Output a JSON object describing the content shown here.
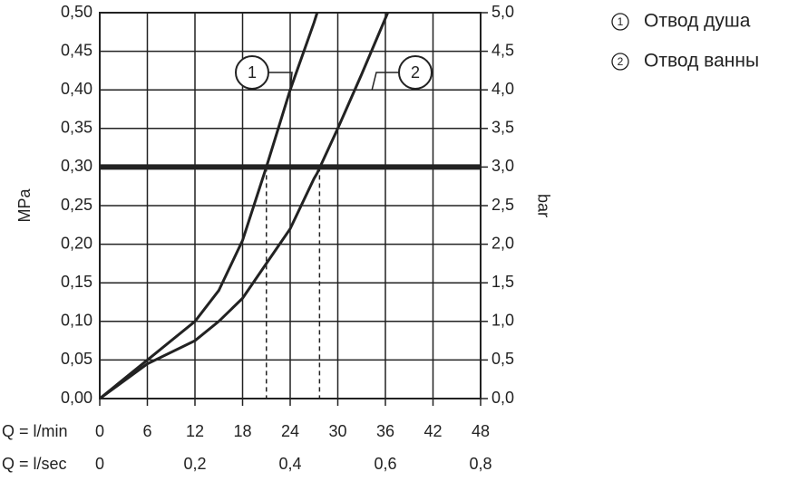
{
  "chart_data": {
    "type": "line",
    "y_label": "MPa",
    "y2_label": "bar",
    "x_label": "Q = l/min",
    "x2_label": "Q = l/sec",
    "x": [
      0,
      6,
      12,
      15,
      18,
      21,
      24,
      27,
      27.4,
      30,
      33,
      36.3
    ],
    "series": [
      {
        "name": "Отвод душа",
        "marker": "1",
        "color": "#222222",
        "values": [
          0,
          0.05,
          0.1,
          0.14,
          0.205,
          0.3,
          0.4,
          0.487,
          0.5,
          null,
          null,
          null
        ]
      },
      {
        "name": "Отвод ванны",
        "marker": "2",
        "color": "#222222",
        "values": [
          0,
          0.045,
          0.075,
          0.1,
          0.13,
          0.175,
          0.22,
          0.285,
          0.292,
          0.35,
          0.42,
          0.5
        ]
      }
    ],
    "xlim": [
      0,
      48
    ],
    "xticks": [
      0,
      6,
      12,
      18,
      24,
      30,
      36,
      42,
      48
    ],
    "x2lim": [
      0,
      0.8
    ],
    "x2ticks": [
      0,
      {
        "value": 0.2,
        "label": "0,2"
      },
      {
        "value": 0.4,
        "label": "0,4"
      },
      {
        "value": 0.6,
        "label": "0,6"
      },
      {
        "value": 0.8,
        "label": "0,8"
      }
    ],
    "ylim": [
      0,
      0.5
    ],
    "yticks": [
      {
        "value": 0,
        "label": "0,00"
      },
      {
        "value": 0.05,
        "label": "0,05"
      },
      {
        "value": 0.1,
        "label": "0,10"
      },
      {
        "value": 0.15,
        "label": "0,15"
      },
      {
        "value": 0.2,
        "label": "0,20"
      },
      {
        "value": 0.25,
        "label": "0,25"
      },
      {
        "value": 0.3,
        "label": "0,30"
      },
      {
        "value": 0.35,
        "label": "0,35"
      },
      {
        "value": 0.4,
        "label": "0,40"
      },
      {
        "value": 0.45,
        "label": "0,45"
      },
      {
        "value": 0.5,
        "label": "0,50"
      }
    ],
    "y2lim": [
      0,
      5
    ],
    "y2ticks": [
      {
        "value": 0,
        "label": "0,0"
      },
      {
        "value": 0.5,
        "label": "0,5"
      },
      {
        "value": 1,
        "label": "1,0"
      },
      {
        "value": 1.5,
        "label": "1,5"
      },
      {
        "value": 2,
        "label": "2,0"
      },
      {
        "value": 2.5,
        "label": "2,5"
      },
      {
        "value": 3,
        "label": "3,0"
      },
      {
        "value": 3.5,
        "label": "3,5"
      },
      {
        "value": 4,
        "label": "4,0"
      },
      {
        "value": 4.5,
        "label": "4,5"
      },
      {
        "value": 5,
        "label": "5,0"
      }
    ],
    "reference_y": 0.3,
    "dashed_x": [
      21,
      27.7
    ],
    "grid": true
  }
}
